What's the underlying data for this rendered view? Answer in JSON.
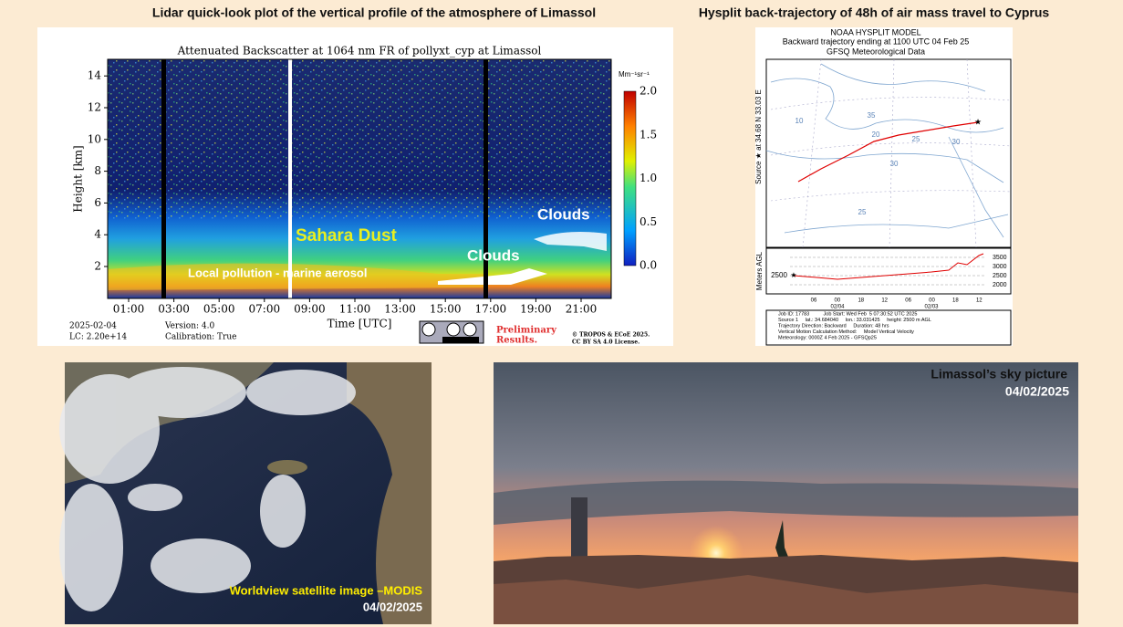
{
  "lidar": {
    "heading": "Lidar quick-look plot of the vertical profile of the atmosphere of Limassol",
    "title": "Attenuated Backscatter at 1064 nm FR of pollyxt_cyp at Limassol",
    "y_label": "Height [km]",
    "x_label": "Time [UTC]",
    "yticks": [
      "2",
      "4",
      "6",
      "8",
      "10",
      "12",
      "14"
    ],
    "xticks": [
      "01:00",
      "03:00",
      "05:00",
      "07:00",
      "09:00",
      "11:00",
      "13:00",
      "15:00",
      "17:00",
      "19:00",
      "21:00"
    ],
    "colorbar_unit": "Mm⁻¹sr⁻¹",
    "colorbar_ticks": [
      "0.0",
      "0.5",
      "1.0",
      "1.5",
      "2.0"
    ],
    "annotations": {
      "dust": "Sahara Dust",
      "clouds_low": "Clouds",
      "clouds_high": "Clouds",
      "pollution": "Local pollution - marine aerosol"
    },
    "footer": {
      "date": "2025-02-04",
      "lc": "LC: 2.20e+14",
      "version": "Version: 4.0",
      "calibration": "Calibration: True",
      "preliminary": [
        "Preliminary",
        "Results."
      ],
      "license": [
        "© TROPOS & ECoE 2025.",
        "CC BY SA 4.0 License."
      ]
    }
  },
  "hysplit": {
    "heading": "Hysplit back-trajectory of 48h of air mass travel to Cyprus",
    "title_lines": [
      "NOAA HYSPLIT MODEL",
      "Backward trajectory ending at 1100 UTC 04 Feb 25",
      "GFSQ Meteorological Data"
    ],
    "source_label": "Source ★ at   34.68 N   33.03 E",
    "contour_labels": [
      "10",
      "35",
      "20",
      "25",
      "30",
      "30",
      "25"
    ],
    "height_axis_label": "Meters AGL",
    "height_levels": [
      "3500",
      "3000",
      "2500",
      "2000"
    ],
    "start_height": "2500",
    "time_ticks": [
      "06",
      "00",
      "18",
      "12",
      "06",
      "00",
      "18",
      "12"
    ],
    "date_ticks": [
      "02/04",
      "02/03"
    ],
    "footer_lines": [
      "Job ID: 17783          Job Start: Wed Feb  5 07:30:52 UTC 2025",
      "Source 1     lat.: 34.684040     lon.: 33.031425     height: 2500 m AGL",
      "Trajectory Direction: Backward     Duration: 48 hrs",
      "Vertical Motion Calculation Method:     Model Vertical Velocity",
      "Meteorology: 0000Z 4 Feb 2025 - GFSQp25"
    ]
  },
  "satellite": {
    "caption": "Worldview satellite image –MODIS",
    "date": "04/02/2025"
  },
  "sky": {
    "caption": "Limassol’s sky picture",
    "date": "04/02/2025"
  }
}
